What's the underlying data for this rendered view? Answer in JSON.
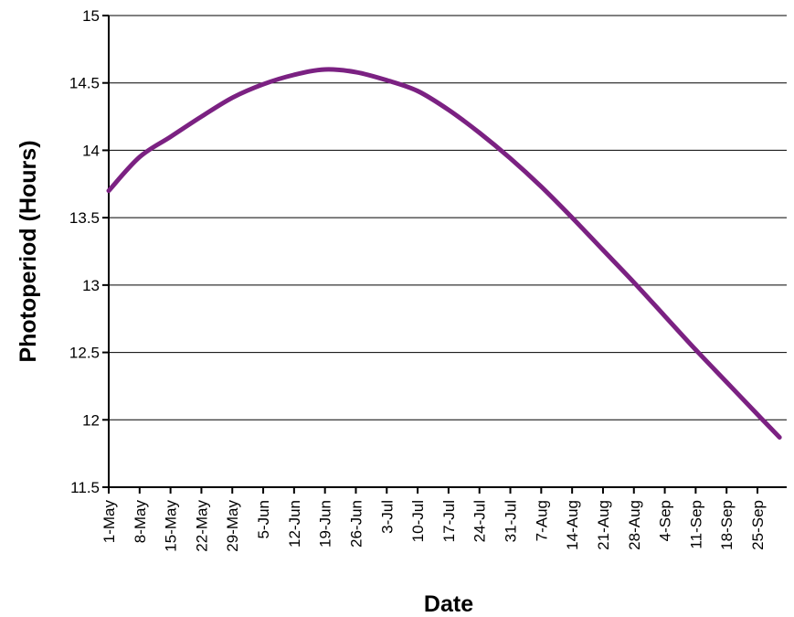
{
  "chart_data": {
    "type": "line",
    "title": "",
    "xlabel": "Date",
    "ylabel": "Photoperiod (Hours)",
    "ylim": [
      11.5,
      15
    ],
    "yticks": [
      11.5,
      12,
      12.5,
      13,
      13.5,
      14,
      14.5,
      15
    ],
    "ytick_labels": [
      "11.5",
      "12",
      "12.5",
      "13",
      "13.5",
      "14",
      "14.5",
      "15"
    ],
    "xlim": [
      "2000-05-01",
      "2000-09-30"
    ],
    "xtick_labels": [
      "1-May",
      "8-May",
      "15-May",
      "22-May",
      "29-May",
      "5-Jun",
      "12-Jun",
      "19-Jun",
      "26-Jun",
      "3-Jul",
      "10-Jul",
      "17-Jul",
      "24-Jul",
      "31-Jul",
      "7-Aug",
      "14-Aug",
      "21-Aug",
      "28-Aug",
      "4-Sep",
      "11-Sep",
      "18-Sep",
      "25-Sep"
    ],
    "grid": "horizontal",
    "line_color": "#7b2182",
    "series": [
      {
        "x": [
          "2000-05-01",
          "2000-05-08",
          "2000-05-15",
          "2000-05-22",
          "2000-05-29",
          "2000-06-05",
          "2000-06-12",
          "2000-06-19",
          "2000-06-26",
          "2000-07-03",
          "2000-07-10",
          "2000-07-17",
          "2000-07-24",
          "2000-07-31",
          "2000-08-07",
          "2000-08-14",
          "2000-08-21",
          "2000-08-28",
          "2000-09-04",
          "2000-09-11",
          "2000-09-18",
          "2000-09-25",
          "2000-09-30"
        ],
        "values": [
          13.7,
          13.95,
          14.1,
          14.25,
          14.39,
          14.49,
          14.56,
          14.6,
          14.58,
          14.52,
          14.44,
          14.3,
          14.13,
          13.94,
          13.73,
          13.5,
          13.26,
          13.02,
          12.77,
          12.52,
          12.28,
          12.04,
          11.87
        ]
      }
    ]
  }
}
